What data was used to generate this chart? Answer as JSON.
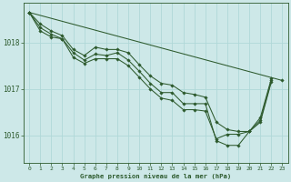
{
  "bg_color": "#cde8e8",
  "plot_bg_color": "#cde8e8",
  "line_color": "#2d5a2d",
  "grid_color": "#b0d8d8",
  "tick_color": "#2d5a2d",
  "xlabel": "Graphe pression niveau de la mer (hPa)",
  "ylim": [
    1015.4,
    1018.85
  ],
  "xlim": [
    -0.5,
    23.5
  ],
  "yticks": [
    1016,
    1017,
    1018
  ],
  "xticks": [
    0,
    1,
    2,
    3,
    4,
    5,
    6,
    7,
    8,
    9,
    10,
    11,
    12,
    13,
    14,
    15,
    16,
    17,
    18,
    19,
    20,
    21,
    22,
    23
  ],
  "series": [
    [
      1018.65,
      1018.4,
      1018.25,
      1018.15,
      1017.85,
      1017.72,
      1017.9,
      1017.85,
      1017.85,
      1017.78,
      1017.52,
      1017.28,
      1017.12,
      1017.08,
      1016.92,
      1016.88,
      1016.82,
      1016.28,
      1016.12,
      1016.08,
      1016.08,
      1016.38,
      1017.22,
      null
    ],
    [
      1018.65,
      1018.32,
      1018.18,
      1018.08,
      1017.78,
      1017.62,
      1017.75,
      1017.72,
      1017.78,
      1017.62,
      1017.38,
      1017.12,
      1016.92,
      1016.92,
      1016.68,
      1016.68,
      1016.68,
      1015.88,
      1015.78,
      1015.78,
      1016.08,
      1016.32,
      1017.18,
      null
    ],
    [
      1018.65,
      1018.25,
      1018.12,
      1018.08,
      1017.68,
      1017.55,
      1017.65,
      1017.65,
      1017.65,
      1017.5,
      1017.25,
      1017.0,
      1016.8,
      1016.75,
      1016.55,
      1016.55,
      1016.52,
      1015.92,
      1016.02,
      1016.02,
      1016.08,
      1016.28,
      1017.15,
      null
    ],
    [
      1018.65,
      null,
      null,
      null,
      null,
      null,
      null,
      null,
      null,
      null,
      null,
      null,
      null,
      null,
      null,
      null,
      null,
      null,
      null,
      null,
      null,
      null,
      null,
      1017.18
    ]
  ]
}
